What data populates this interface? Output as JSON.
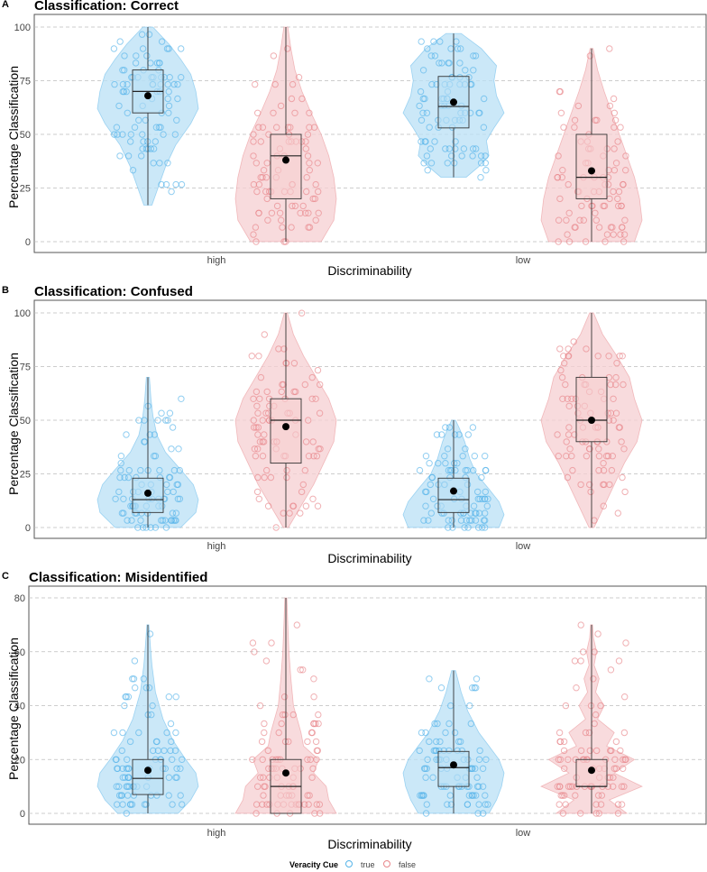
{
  "chart_data": [
    {
      "type": "violin-box-jitter",
      "panel_letter": "A",
      "title": "Classification: Correct",
      "xlabel": "Discriminability",
      "ylabel": "Percentage Classification",
      "categories": [
        "high",
        "low"
      ],
      "ylim": [
        0,
        100
      ],
      "yticks": [
        0,
        25,
        50,
        75,
        100
      ],
      "grid": "horizontal dashed",
      "groups": [
        {
          "category": "high",
          "cue": "true",
          "min": 17,
          "q1": 60,
          "median": 70,
          "q3": 80,
          "max": 100,
          "mean": 68,
          "density": [
            [
              17,
              0.08
            ],
            [
              25,
              0.2
            ],
            [
              35,
              0.35
            ],
            [
              45,
              0.55
            ],
            [
              55,
              0.85
            ],
            [
              62,
              1.0
            ],
            [
              70,
              0.95
            ],
            [
              78,
              0.85
            ],
            [
              85,
              0.65
            ],
            [
              92,
              0.42
            ],
            [
              100,
              0.1
            ]
          ]
        },
        {
          "category": "high",
          "cue": "false",
          "min": 0,
          "q1": 20,
          "median": 40,
          "q3": 50,
          "max": 100,
          "mean": 38,
          "density": [
            [
              0,
              0.7
            ],
            [
              10,
              0.95
            ],
            [
              20,
              1.0
            ],
            [
              30,
              0.95
            ],
            [
              40,
              0.85
            ],
            [
              50,
              0.7
            ],
            [
              60,
              0.5
            ],
            [
              70,
              0.32
            ],
            [
              80,
              0.18
            ],
            [
              90,
              0.1
            ],
            [
              100,
              0.04
            ]
          ]
        },
        {
          "category": "low",
          "cue": "true",
          "min": 30,
          "q1": 53,
          "median": 63,
          "q3": 77,
          "max": 97,
          "mean": 65,
          "density": [
            [
              30,
              0.25
            ],
            [
              35,
              0.5
            ],
            [
              40,
              0.7
            ],
            [
              47,
              0.65
            ],
            [
              53,
              0.8
            ],
            [
              60,
              1.0
            ],
            [
              68,
              0.85
            ],
            [
              75,
              0.8
            ],
            [
              82,
              0.85
            ],
            [
              90,
              0.55
            ],
            [
              97,
              0.15
            ]
          ]
        },
        {
          "category": "low",
          "cue": "false",
          "min": 0,
          "q1": 20,
          "median": 30,
          "q3": 50,
          "max": 90,
          "mean": 33,
          "density": [
            [
              0,
              0.85
            ],
            [
              10,
              1.0
            ],
            [
              20,
              0.95
            ],
            [
              30,
              0.85
            ],
            [
              40,
              0.7
            ],
            [
              50,
              0.55
            ],
            [
              60,
              0.4
            ],
            [
              70,
              0.25
            ],
            [
              80,
              0.12
            ],
            [
              90,
              0.03
            ]
          ]
        }
      ]
    },
    {
      "type": "violin-box-jitter",
      "panel_letter": "B",
      "title": "Classification: Confused",
      "xlabel": "Discriminability",
      "ylabel": "Percentage Classification",
      "categories": [
        "high",
        "low"
      ],
      "ylim": [
        0,
        100
      ],
      "yticks": [
        0,
        25,
        50,
        75,
        100
      ],
      "grid": "horizontal dashed",
      "groups": [
        {
          "category": "high",
          "cue": "true",
          "min": 0,
          "q1": 7,
          "median": 13,
          "q3": 23,
          "max": 70,
          "mean": 16,
          "density": [
            [
              0,
              0.65
            ],
            [
              7,
              0.95
            ],
            [
              13,
              1.0
            ],
            [
              20,
              0.9
            ],
            [
              27,
              0.65
            ],
            [
              35,
              0.35
            ],
            [
              43,
              0.18
            ],
            [
              52,
              0.1
            ],
            [
              60,
              0.06
            ],
            [
              70,
              0.03
            ]
          ]
        },
        {
          "category": "high",
          "cue": "false",
          "min": 0,
          "q1": 30,
          "median": 50,
          "q3": 60,
          "max": 100,
          "mean": 47,
          "density": [
            [
              0,
              0.05
            ],
            [
              10,
              0.3
            ],
            [
              20,
              0.55
            ],
            [
              30,
              0.75
            ],
            [
              40,
              0.95
            ],
            [
              50,
              1.0
            ],
            [
              60,
              0.85
            ],
            [
              70,
              0.6
            ],
            [
              80,
              0.35
            ],
            [
              90,
              0.15
            ],
            [
              100,
              0.03
            ]
          ]
        },
        {
          "category": "low",
          "cue": "true",
          "min": 0,
          "q1": 7,
          "median": 13,
          "q3": 23,
          "max": 50,
          "mean": 17,
          "density": [
            [
              0,
              0.9
            ],
            [
              6,
              1.0
            ],
            [
              12,
              0.9
            ],
            [
              18,
              0.7
            ],
            [
              25,
              0.45
            ],
            [
              32,
              0.32
            ],
            [
              40,
              0.22
            ],
            [
              46,
              0.12
            ],
            [
              50,
              0.04
            ]
          ]
        },
        {
          "category": "low",
          "cue": "false",
          "min": 0,
          "q1": 40,
          "median": 50,
          "q3": 70,
          "max": 100,
          "mean": 50,
          "density": [
            [
              0,
              0.05
            ],
            [
              10,
              0.25
            ],
            [
              20,
              0.45
            ],
            [
              30,
              0.65
            ],
            [
              40,
              0.9
            ],
            [
              50,
              1.0
            ],
            [
              60,
              0.85
            ],
            [
              70,
              0.75
            ],
            [
              80,
              0.5
            ],
            [
              90,
              0.22
            ],
            [
              100,
              0.04
            ]
          ]
        }
      ]
    },
    {
      "type": "violin-box-jitter",
      "panel_letter": "C",
      "title": "Classification: Misidentified",
      "xlabel": "Discriminability",
      "ylabel": "Percentage Classification",
      "categories": [
        "high",
        "low"
      ],
      "ylim": [
        0,
        80
      ],
      "yticks": [
        0,
        20,
        40,
        60,
        80
      ],
      "grid": "horizontal dashed",
      "groups": [
        {
          "category": "high",
          "cue": "true",
          "min": 0,
          "q1": 7,
          "median": 13,
          "q3": 20,
          "max": 70,
          "mean": 16,
          "density": [
            [
              0,
              0.6
            ],
            [
              5,
              0.85
            ],
            [
              10,
              1.0
            ],
            [
              15,
              0.95
            ],
            [
              20,
              0.75
            ],
            [
              27,
              0.5
            ],
            [
              35,
              0.3
            ],
            [
              45,
              0.15
            ],
            [
              55,
              0.08
            ],
            [
              62,
              0.05
            ],
            [
              70,
              0.02
            ]
          ]
        },
        {
          "category": "high",
          "cue": "false",
          "min": 0,
          "q1": 0,
          "median": 10,
          "q3": 20,
          "max": 80,
          "mean": 15,
          "density": [
            [
              0,
              1.0
            ],
            [
              5,
              0.85
            ],
            [
              10,
              0.8
            ],
            [
              15,
              0.55
            ],
            [
              20,
              0.65
            ],
            [
              25,
              0.35
            ],
            [
              30,
              0.3
            ],
            [
              40,
              0.15
            ],
            [
              50,
              0.1
            ],
            [
              60,
              0.06
            ],
            [
              70,
              0.04
            ],
            [
              80,
              0.02
            ]
          ]
        },
        {
          "category": "low",
          "cue": "true",
          "min": 0,
          "q1": 10,
          "median": 17,
          "q3": 23,
          "max": 53,
          "mean": 18,
          "density": [
            [
              0,
              0.7
            ],
            [
              5,
              0.85
            ],
            [
              10,
              0.95
            ],
            [
              15,
              1.0
            ],
            [
              20,
              0.9
            ],
            [
              25,
              0.7
            ],
            [
              30,
              0.5
            ],
            [
              38,
              0.28
            ],
            [
              45,
              0.15
            ],
            [
              53,
              0.04
            ]
          ]
        },
        {
          "category": "low",
          "cue": "false",
          "min": 0,
          "q1": 10,
          "median": 10,
          "q3": 20,
          "max": 70,
          "mean": 16,
          "density": [
            [
              0,
              0.7
            ],
            [
              5,
              0.35
            ],
            [
              10,
              1.0
            ],
            [
              15,
              0.45
            ],
            [
              20,
              0.85
            ],
            [
              25,
              0.3
            ],
            [
              30,
              0.45
            ],
            [
              35,
              0.12
            ],
            [
              40,
              0.25
            ],
            [
              45,
              0.08
            ],
            [
              50,
              0.15
            ],
            [
              55,
              0.05
            ],
            [
              60,
              0.1
            ],
            [
              65,
              0.04
            ],
            [
              70,
              0.02
            ]
          ]
        }
      ]
    }
  ],
  "legend": {
    "title": "Veracity Cue",
    "placement": "bottom",
    "items": [
      {
        "label": "true",
        "color": "#56b4e9"
      },
      {
        "label": "false",
        "color": "#e8868a"
      }
    ]
  },
  "colors": {
    "true_fill": "#b9e0f5",
    "true_point": "#56b4e9",
    "false_fill": "#f6cfd1",
    "false_point": "#e8868a",
    "grid": "#bdbdbd",
    "frame": "#555555"
  }
}
